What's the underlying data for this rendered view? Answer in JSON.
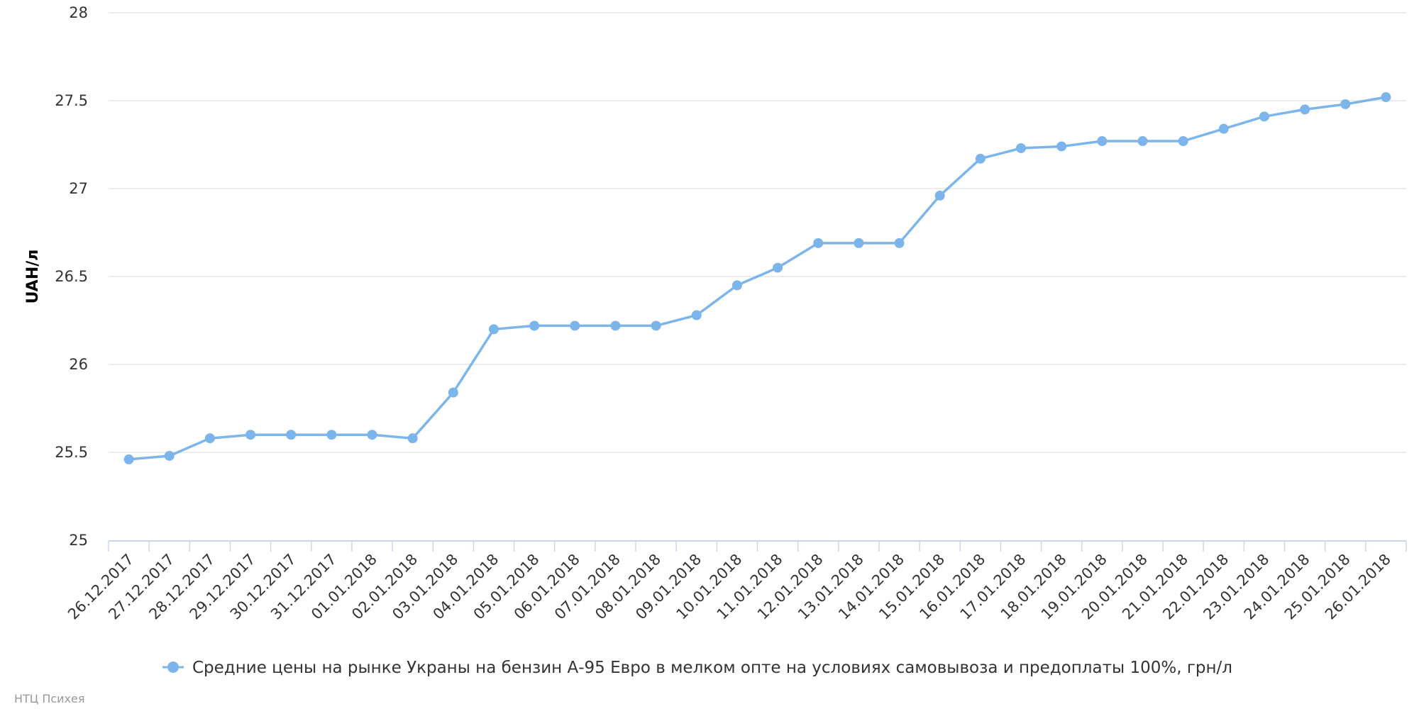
{
  "chart_data": {
    "type": "line",
    "title": "",
    "xlabel": "",
    "ylabel": "UAH/л",
    "ylim": [
      25,
      28
    ],
    "y_ticks": [
      "25",
      "25.5",
      "26",
      "26.5",
      "27",
      "27.5",
      "28"
    ],
    "grid": true,
    "legend_position": "bottom-center",
    "categories": [
      "26.12.2017",
      "27.12.2017",
      "28.12.2017",
      "29.12.2017",
      "30.12.2017",
      "31.12.2017",
      "01.01.2018",
      "02.01.2018",
      "03.01.2018",
      "04.01.2018",
      "05.01.2018",
      "06.01.2018",
      "07.01.2018",
      "08.01.2018",
      "09.01.2018",
      "10.01.2018",
      "11.01.2018",
      "12.01.2018",
      "13.01.2018",
      "14.01.2018",
      "15.01.2018",
      "16.01.2018",
      "17.01.2018",
      "18.01.2018",
      "19.01.2018",
      "20.01.2018",
      "21.01.2018",
      "22.01.2018",
      "23.01.2018",
      "24.01.2018",
      "25.01.2018",
      "26.01.2018"
    ],
    "series": [
      {
        "name": "Средние цены на рынке Украны на бензин А-95 Евро в мелком опте на условиях самовывоза и предоплаты 100%, грн/л",
        "color": "#7cb5ec",
        "values": [
          25.46,
          25.48,
          25.58,
          25.6,
          25.6,
          25.6,
          25.6,
          25.58,
          25.84,
          26.2,
          26.22,
          26.22,
          26.22,
          26.22,
          26.28,
          26.45,
          26.55,
          26.69,
          26.69,
          26.69,
          26.96,
          27.17,
          27.23,
          27.24,
          27.27,
          27.27,
          27.27,
          27.34,
          27.41,
          27.45,
          27.48,
          27.52
        ]
      }
    ]
  },
  "credit": "НТЦ Психея"
}
